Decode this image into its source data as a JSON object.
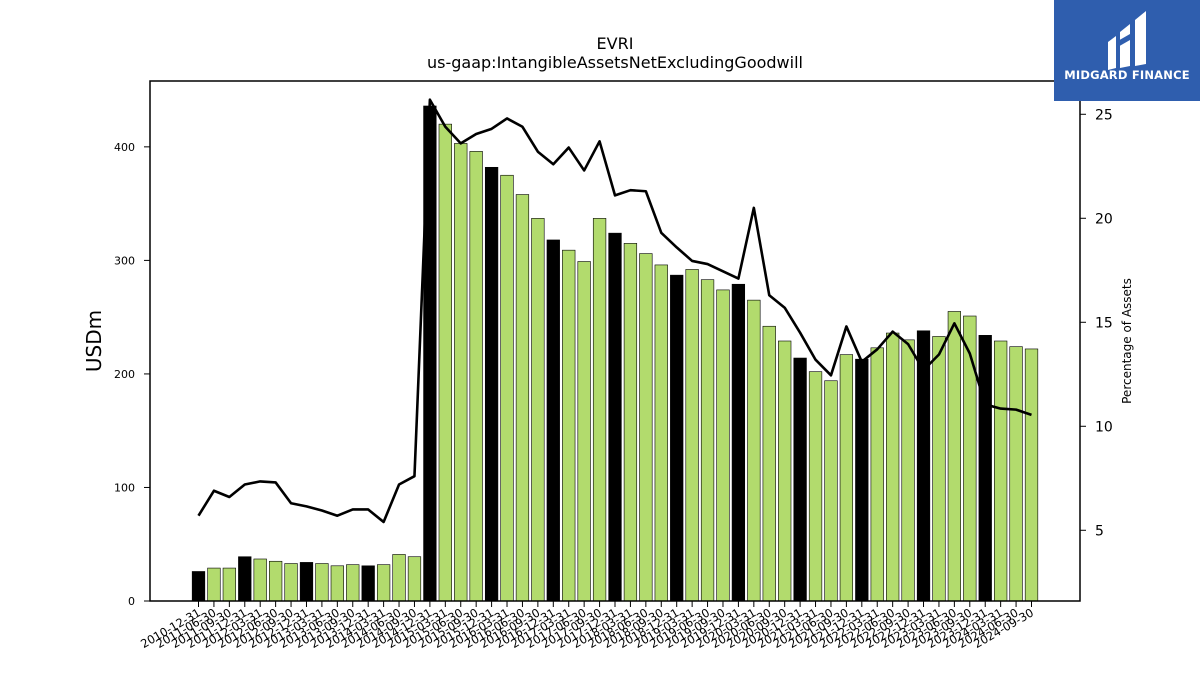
{
  "chart_data": {
    "type": "bar",
    "title": "EVRI",
    "subtitle": "us-gaap:IntangibleAssetsNetExcludingGoodwill",
    "ylabel": "USDm",
    "y2label": "Percentage of Assets",
    "ylim": [
      0,
      458
    ],
    "y2lim": [
      1.6,
      26.6
    ],
    "yticks": [
      0,
      100,
      200,
      300,
      400
    ],
    "y2ticks": [
      5,
      10,
      15,
      20,
      25
    ],
    "categories": [
      "2010-12-31",
      "2011-06-30",
      "2011-09-30",
      "2011-12-31",
      "2012-03-31",
      "2012-06-30",
      "2012-09-30",
      "2012-12-31",
      "2013-03-31",
      "2013-06-30",
      "2013-09-30",
      "2013-12-31",
      "2014-03-31",
      "2014-06-30",
      "2014-09-30",
      "2014-12-31",
      "2015-03-31",
      "2015-06-30",
      "2015-09-30",
      "2015-12-31",
      "2016-03-31",
      "2016-06-30",
      "2016-09-30",
      "2016-12-31",
      "2017-03-31",
      "2017-06-30",
      "2017-09-30",
      "2017-12-31",
      "2018-03-31",
      "2018-06-30",
      "2018-09-30",
      "2018-12-31",
      "2019-03-31",
      "2019-06-30",
      "2019-09-30",
      "2019-12-31",
      "2020-03-31",
      "2020-06-30",
      "2020-09-30",
      "2020-12-31",
      "2021-03-31",
      "2021-06-30",
      "2021-09-30",
      "2021-12-31",
      "2022-03-31",
      "2022-06-30",
      "2022-09-30",
      "2022-12-31",
      "2023-03-31",
      "2023-06-30",
      "2023-09-30",
      "2023-12-31",
      "2024-03-31",
      "2024-06-30",
      "2024-09-30"
    ],
    "series": [
      {
        "type": "bar",
        "values": [
          26,
          29,
          29,
          39,
          37,
          35,
          33,
          34,
          33,
          31,
          32,
          31,
          32,
          41,
          39,
          436,
          420,
          403,
          396,
          382,
          375,
          358,
          337,
          318,
          309,
          299,
          337,
          324,
          315,
          306,
          296,
          287,
          292,
          283,
          274,
          279,
          265,
          242,
          229,
          214,
          202,
          194,
          217,
          213,
          223,
          236,
          230,
          238,
          233,
          255,
          251,
          234,
          229,
          224,
          222
        ]
      },
      {
        "type": "line",
        "values": [
          5.7,
          6.9,
          6.6,
          7.2,
          7.35,
          7.3,
          6.3,
          6.15,
          5.95,
          5.7,
          6.0,
          6.0,
          5.4,
          7.2,
          7.6,
          25.7,
          24.4,
          23.6,
          24.05,
          24.3,
          24.8,
          24.4,
          23.2,
          22.6,
          23.4,
          22.3,
          23.7,
          21.1,
          21.35,
          21.3,
          19.3,
          18.6,
          17.95,
          17.8,
          17.45,
          17.1,
          20.5,
          16.3,
          15.7,
          14.5,
          13.2,
          12.45,
          14.8,
          13.1,
          13.7,
          14.55,
          13.95,
          12.7,
          13.45,
          14.95,
          13.5,
          11.05,
          10.85,
          10.8,
          10.55
        ]
      }
    ],
    "year_end_color": "#000000",
    "quarter_color": "#b2db6d",
    "line_color": "#000000"
  },
  "logo": {
    "text": "MIDGARD FINANCE",
    "color": "#2f5eae"
  }
}
